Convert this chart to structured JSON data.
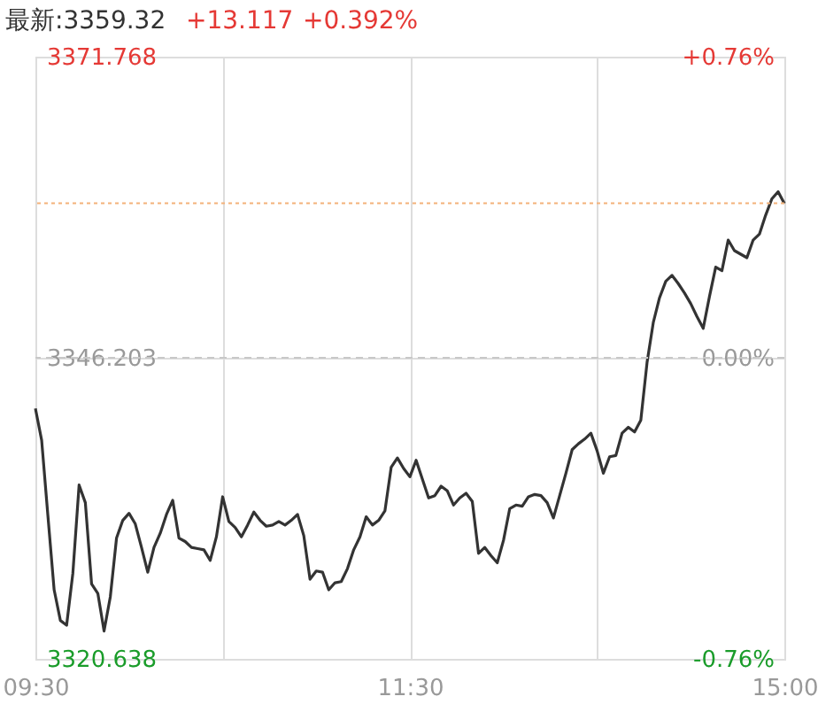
{
  "chart_data": {
    "type": "line",
    "title": "最新:3359.32",
    "annotations": [
      "+13.117",
      "+0.392%"
    ],
    "categories": [
      "09:30",
      null,
      null,
      null,
      null,
      null,
      null,
      null,
      null,
      null,
      null,
      null,
      null,
      null,
      null,
      null,
      null,
      null,
      null,
      null,
      null,
      null,
      null,
      null,
      null,
      null,
      null,
      null,
      null,
      null,
      null,
      null,
      null,
      null,
      null,
      null,
      null,
      null,
      null,
      null,
      null,
      null,
      null,
      null,
      null,
      null,
      null,
      null,
      null,
      null,
      null,
      null,
      null,
      null,
      null,
      null,
      null,
      null,
      null,
      null,
      "11:30",
      null,
      null,
      null,
      null,
      null,
      null,
      null,
      null,
      null,
      null,
      null,
      null,
      null,
      null,
      null,
      null,
      null,
      null,
      null,
      null,
      null,
      null,
      null,
      null,
      null,
      null,
      null,
      null,
      null,
      null,
      null,
      null,
      null,
      null,
      null,
      null,
      null,
      null,
      null,
      null,
      null,
      null,
      null,
      null,
      null,
      null,
      null,
      null,
      null,
      null,
      null,
      null,
      null,
      null,
      null,
      null,
      null,
      null,
      null,
      "15:00"
    ],
    "series": [
      {
        "color": "#333333",
        "values": [
          3341.9,
          3339.2,
          3332.8,
          3326.5,
          3323.9,
          3323.5,
          3327.9,
          3335.4,
          3333.9,
          3327.0,
          3326.2,
          3323.0,
          3325.9,
          3330.9,
          3332.4,
          3333.0,
          3332.1,
          3330.1,
          3328.0,
          3330.1,
          3331.3,
          3332.9,
          3334.1,
          3330.9,
          3330.6,
          3330.1,
          3330.0,
          3329.9,
          3329.0,
          3331.0,
          3334.4,
          3332.3,
          3331.8,
          3331.0,
          3332.0,
          3333.1,
          3332.4,
          3331.9,
          3332.0,
          3332.3,
          3332.0,
          3332.4,
          3332.9,
          3331.1,
          3327.4,
          3328.1,
          3328.0,
          3326.5,
          3327.1,
          3327.2,
          3328.3,
          3329.9,
          3331.0,
          3332.7,
          3332.0,
          3332.4,
          3333.2,
          3336.9,
          3337.7,
          3336.8,
          3336.1,
          3337.5,
          3335.9,
          3334.3,
          3334.5,
          3335.3,
          3334.9,
          3333.7,
          3334.3,
          3334.7,
          3334.0,
          3329.6,
          3330.1,
          3329.4,
          3328.8,
          3330.7,
          3333.4,
          3333.7,
          3333.6,
          3334.4,
          3334.6,
          3334.5,
          3333.9,
          3332.6,
          3334.5,
          3336.4,
          3338.4,
          3338.9,
          3339.3,
          3339.8,
          3338.3,
          3336.4,
          3337.8,
          3337.9,
          3339.8,
          3340.3,
          3339.9,
          3340.9,
          3345.8,
          3349.2,
          3351.3,
          3352.7,
          3353.2,
          3352.5,
          3351.7,
          3350.8,
          3349.7,
          3348.7,
          3351.4,
          3353.9,
          3353.6,
          3356.2,
          3355.3,
          3355.0,
          3354.7,
          3356.2,
          3356.7,
          3358.3,
          3359.7,
          3360.3,
          3359.3
        ]
      }
    ],
    "ylim": [
      3320.638,
      3371.768
    ],
    "yticks": [
      3320.638,
      3346.203,
      3371.768
    ],
    "y2lim": [
      -0.76,
      0.76
    ],
    "y2ticks": [
      {
        "value": -0.76,
        "label": "-0.76%"
      },
      {
        "value": 0,
        "label": "0.00%"
      },
      {
        "value": 0.76,
        "label": "+0.76%"
      }
    ],
    "ref_lines": [
      {
        "axis": "y",
        "value": 3359.32,
        "label": null,
        "color": "#f3b27a",
        "line_style": "dotted"
      },
      {
        "axis": "y2",
        "value": 0,
        "label": null,
        "color": "#c8c8c8",
        "line_style": "dashed"
      }
    ],
    "grid": true,
    "marker": "none",
    "line_style": "solid"
  }
}
